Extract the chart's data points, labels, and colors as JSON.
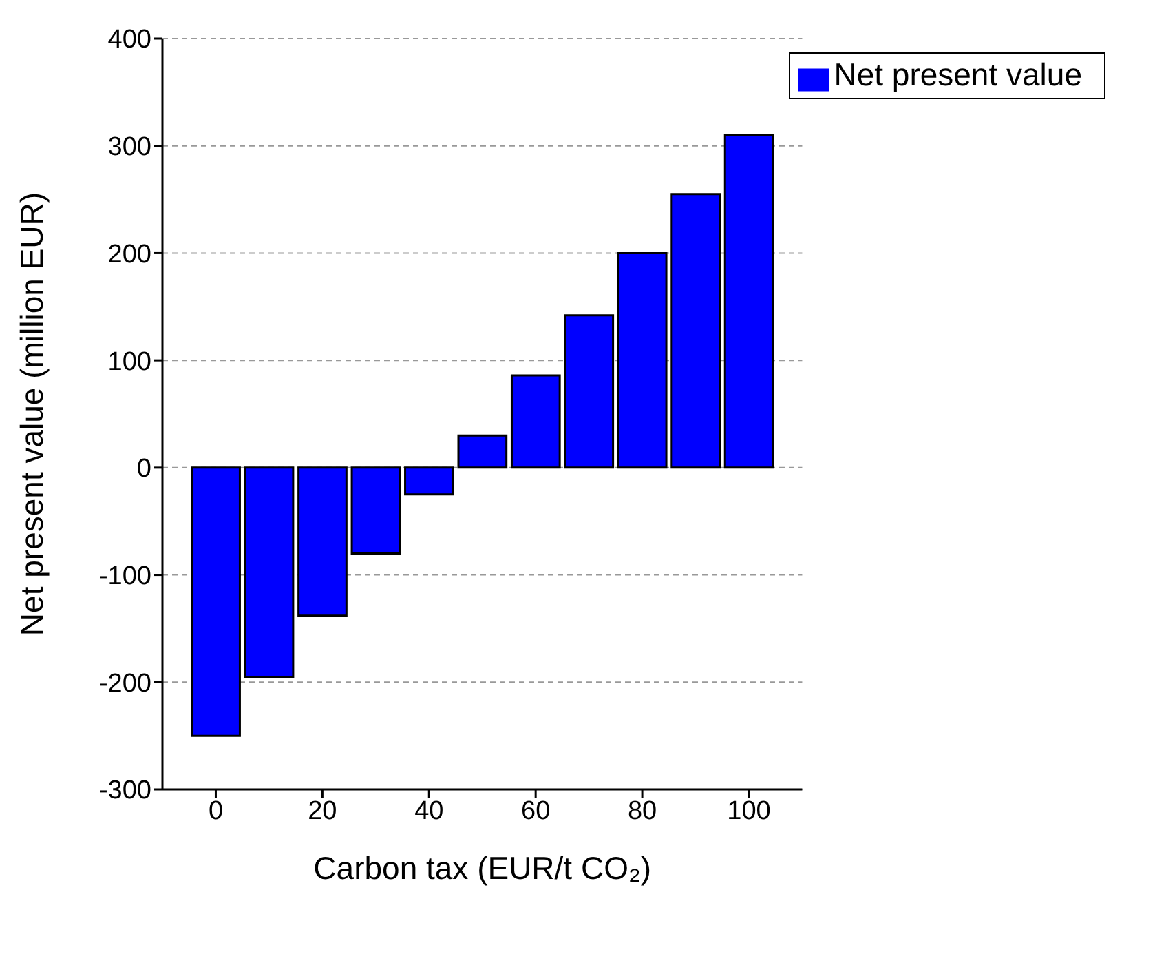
{
  "chart_data": {
    "type": "bar",
    "xlabel": "Carbon tax (EUR/t CO₂)",
    "ylabel": "Net present value (million EUR)",
    "x": [
      0,
      10,
      20,
      30,
      40,
      50,
      60,
      70,
      80,
      90,
      100
    ],
    "series": [
      {
        "name": "Net present value",
        "color": "#0000ff",
        "values": [
          -250,
          -195,
          -138,
          -80,
          -25,
          30,
          86,
          142,
          200,
          255,
          310
        ]
      }
    ],
    "xlim": [
      -10,
      110
    ],
    "xticks": [
      0,
      20,
      40,
      60,
      80,
      100
    ],
    "ylim": [
      -300,
      400
    ],
    "yticks": [
      -300,
      -200,
      -100,
      0,
      100,
      200,
      300,
      400
    ],
    "grid": "y",
    "legend": "top right"
  }
}
